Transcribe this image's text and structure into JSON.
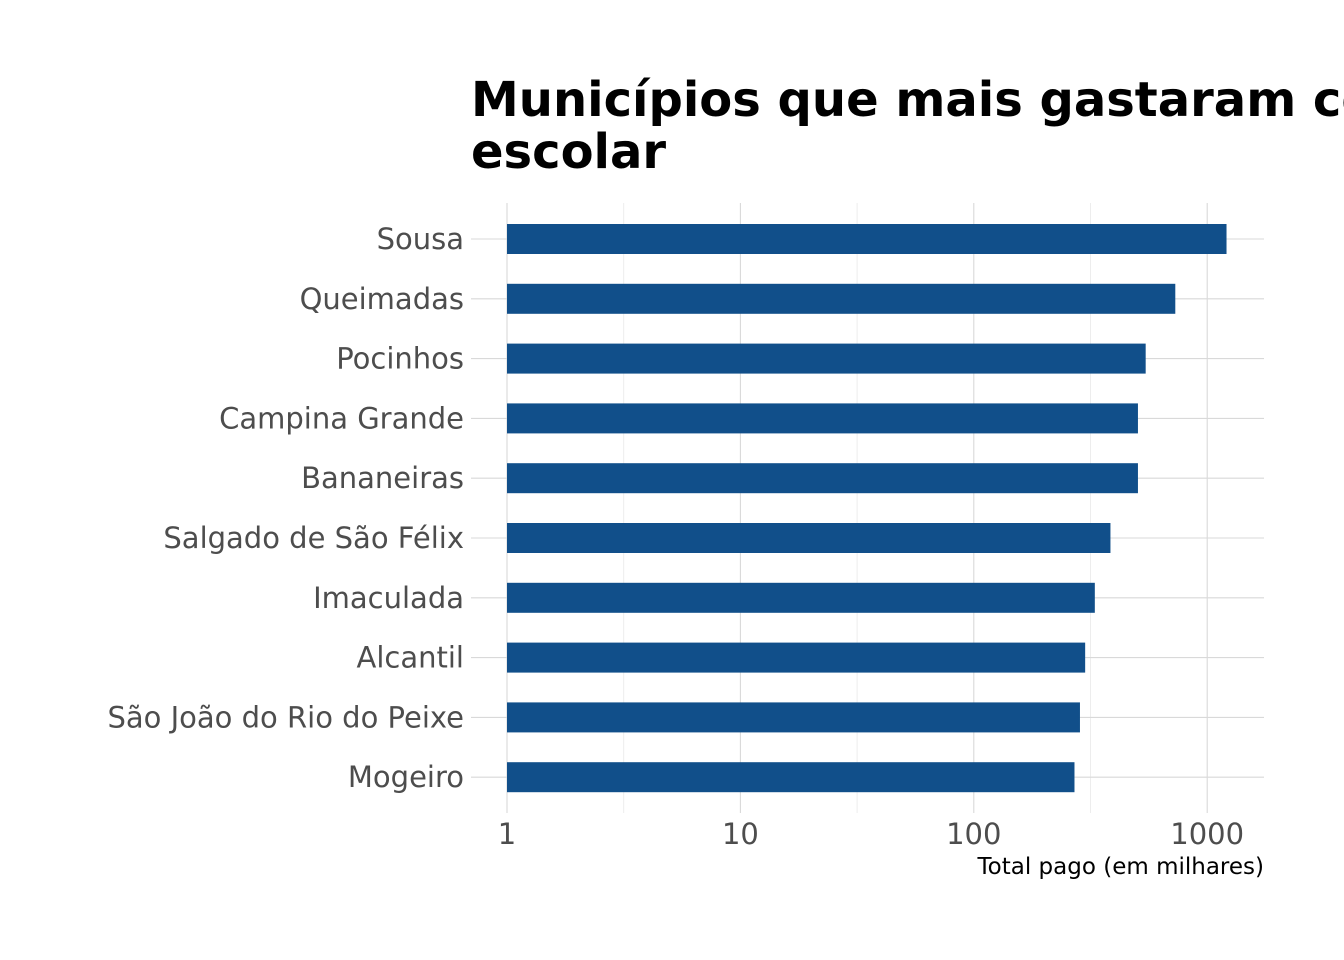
{
  "chart_data": {
    "type": "bar",
    "orientation": "horizontal",
    "title_lines": [
      "Municípios que mais gastaram com",
      "escolar"
    ],
    "xlabel": "Total pago (em milhares)",
    "ylabel": "",
    "x_scale": "log10",
    "xlim": [
      1,
      1700
    ],
    "x_ticks": [
      1,
      10,
      100,
      1000
    ],
    "x_tick_labels": [
      "1",
      "10",
      "100",
      "1000"
    ],
    "grid": true,
    "categories": [
      "Sousa",
      "Queimadas",
      "Pocinhos",
      "Campina Grande",
      "Bananeiras",
      "Salgado de São Félix",
      "Imaculada",
      "Alcantil",
      "São João do Rio do Peixe",
      "Mogeiro"
    ],
    "values": [
      1210,
      730,
      545,
      505,
      505,
      385,
      330,
      300,
      285,
      270
    ],
    "bar_color": "#114f8a"
  }
}
